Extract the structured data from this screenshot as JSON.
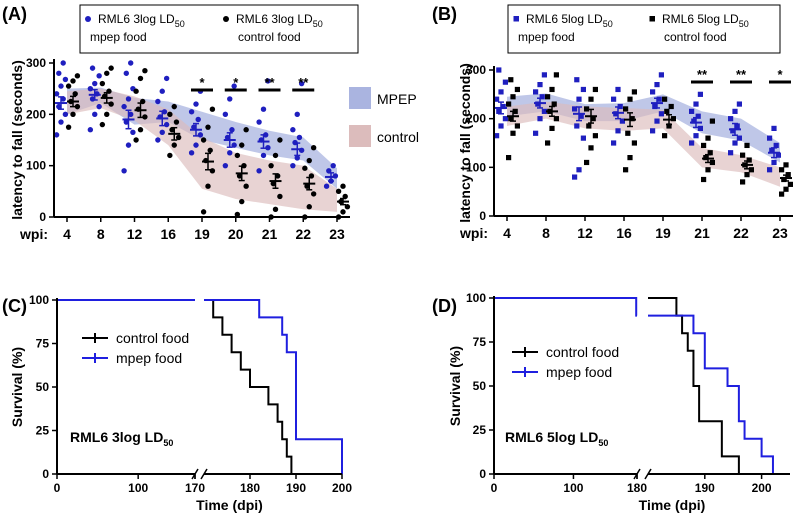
{
  "chart_data": [
    {
      "panel": "(A)",
      "type": "scatter",
      "ylabel": "latency to fall (seconds)",
      "x_prefix": "wpi:",
      "categories": [
        "4",
        "8",
        "12",
        "16",
        "19",
        "20",
        "21",
        "22",
        "23"
      ],
      "ylim": [
        0,
        300
      ],
      "yticks": [
        0,
        100,
        200,
        300
      ],
      "legend_box": [
        {
          "name": "RML6 3log LD",
          "sub": "50",
          "line2": "mpep food",
          "color": "#1f1fbf"
        },
        {
          "name": "RML6 3log LD",
          "sub": "50",
          "line2": "control food",
          "color": "#000000"
        }
      ],
      "band_legend": [
        {
          "name": "MPEP",
          "color": "#aab4e0"
        },
        {
          "name": "control",
          "color": "#dcbcbc"
        }
      ],
      "significance": [
        {
          "category": "19",
          "label": "*"
        },
        {
          "category": "20",
          "label": "*"
        },
        {
          "category": "21",
          "label": "**"
        },
        {
          "category": "22",
          "label": "**"
        }
      ],
      "series": [
        {
          "name": "mpep food",
          "color": "#1f1fbf",
          "marker": "circle",
          "means": [
            222,
            238,
            190,
            192,
            170,
            150,
            147,
            132,
            78
          ],
          "sem": [
            12,
            10,
            18,
            14,
            12,
            14,
            13,
            12,
            8
          ],
          "points": [
            [
              160,
              185,
              200,
              215,
              230,
              240,
              255,
              268,
              280,
              300
            ],
            [
              170,
              200,
              215,
              230,
              240,
              250,
              260,
              275,
              290
            ],
            [
              90,
              140,
              165,
              185,
              200,
              215,
              230,
              250,
              280,
              300
            ],
            [
              150,
              165,
              180,
              195,
              205,
              225,
              245,
              270
            ],
            [
              125,
              140,
              160,
              175,
              190,
              205,
              220,
              245
            ],
            [
              100,
              125,
              140,
              155,
              170,
              200,
              230,
              255
            ],
            [
              90,
              120,
              135,
              150,
              160,
              185,
              210,
              265
            ],
            [
              100,
              115,
              130,
              145,
              155,
              170,
              200,
              260
            ],
            [
              60,
              70,
              80,
              90,
              100
            ]
          ]
        },
        {
          "name": "control food",
          "color": "#000000",
          "marker": "circle",
          "means": [
            225,
            232,
            208,
            162,
            108,
            85,
            70,
            65,
            30
          ],
          "sem": [
            10,
            10,
            14,
            12,
            16,
            14,
            14,
            12,
            6
          ],
          "points": [
            [
              175,
              200,
              215,
              225,
              240,
              255,
              265,
              275
            ],
            [
              180,
              200,
              220,
              235,
              245,
              260,
              280,
              290
            ],
            [
              150,
              170,
              195,
              210,
              225,
              245,
              270,
              285
            ],
            [
              120,
              140,
              155,
              170,
              185,
              200,
              215
            ],
            [
              10,
              60,
              90,
              110,
              130,
              150,
              175,
              210
            ],
            [
              5,
              30,
              60,
              80,
              100,
              120,
              140,
              170
            ],
            [
              0,
              15,
              40,
              65,
              80,
              100,
              120,
              150
            ],
            [
              0,
              20,
              45,
              60,
              80,
              95,
              110,
              135
            ],
            [
              0,
              10,
              20,
              30,
              40,
              50,
              60
            ]
          ]
        }
      ],
      "bands": [
        {
          "series": "mpep food",
          "lower": [
            200,
            222,
            180,
            185,
            150,
            135,
            120,
            110,
            55
          ],
          "upper": [
            250,
            252,
            232,
            225,
            205,
            185,
            168,
            155,
            95
          ],
          "color": "#aab4e0"
        },
        {
          "series": "control food",
          "lower": [
            200,
            212,
            188,
            140,
            55,
            35,
            25,
            15,
            10
          ],
          "upper": [
            245,
            250,
            235,
            210,
            155,
            125,
            110,
            100,
            55
          ],
          "color": "#dcbcbc"
        }
      ]
    },
    {
      "panel": "(B)",
      "type": "scatter",
      "ylabel": "latency to fall (seconds)",
      "x_prefix": "wpi:",
      "categories": [
        "4",
        "8",
        "12",
        "16",
        "19",
        "21",
        "22",
        "23"
      ],
      "ylim": [
        0,
        300
      ],
      "yticks": [
        0,
        100,
        200,
        300
      ],
      "legend_box": [
        {
          "name": "RML6 5log LD",
          "sub": "50",
          "line2": "mpep food",
          "color": "#1f1fbf"
        },
        {
          "name": "RML6 5log LD",
          "sub": "50",
          "line2": "control food",
          "color": "#000000"
        }
      ],
      "significance": [
        {
          "category": "21",
          "label": "**"
        },
        {
          "category": "22",
          "label": "**"
        },
        {
          "category": "23",
          "label": "*"
        }
      ],
      "series": [
        {
          "name": "mpep food",
          "color": "#1f1fbf",
          "marker": "square",
          "means": [
            222,
            232,
            210,
            212,
            232,
            192,
            178,
            130
          ],
          "sem": [
            12,
            10,
            14,
            12,
            10,
            10,
            12,
            10
          ],
          "points": [
            [
              165,
              185,
              200,
              215,
              225,
              240,
              255,
              275,
              300
            ],
            [
              170,
              200,
              215,
              230,
              245,
              255,
              270,
              290
            ],
            [
              80,
              95,
              160,
              185,
              205,
              220,
              240,
              260,
              280
            ],
            [
              150,
              175,
              195,
              210,
              225,
              240,
              260
            ],
            [
              175,
              195,
              210,
              225,
              240,
              255,
              270,
              290
            ],
            [
              150,
              165,
              180,
              195,
              205,
              215,
              230,
              250
            ],
            [
              130,
              150,
              160,
              175,
              185,
              200,
              215,
              230
            ],
            [
              95,
              110,
              125,
              135,
              145,
              160,
              180
            ]
          ]
        },
        {
          "name": "control food",
          "color": "#000000",
          "marker": "square",
          "means": [
            205,
            215,
            205,
            198,
            198,
            118,
            105,
            78
          ],
          "sem": [
            10,
            10,
            14,
            14,
            10,
            8,
            8,
            6
          ],
          "points": [
            [
              120,
              170,
              185,
              200,
              215,
              230,
              245,
              260,
              280
            ],
            [
              150,
              180,
              200,
              215,
              230,
              245,
              260,
              290
            ],
            [
              110,
              140,
              165,
              185,
              200,
              220,
              240,
              260
            ],
            [
              95,
              120,
              150,
              170,
              200,
              220,
              240,
              255
            ],
            [
              165,
              185,
              200,
              215,
              225,
              240
            ],
            [
              75,
              95,
              110,
              120,
              130,
              145,
              160,
              195
            ],
            [
              70,
              85,
              95,
              105,
              115,
              125,
              145
            ],
            [
              45,
              55,
              65,
              75,
              85,
              95,
              105
            ]
          ]
        }
      ],
      "bands": [
        {
          "series": "mpep food",
          "lower": [
            205,
            215,
            195,
            195,
            215,
            170,
            155,
            110
          ],
          "upper": [
            245,
            252,
            230,
            232,
            250,
            215,
            200,
            150
          ],
          "color": "#aab4e0"
        },
        {
          "series": "control food",
          "lower": [
            185,
            200,
            180,
            175,
            180,
            100,
            90,
            60
          ],
          "upper": [
            225,
            235,
            225,
            222,
            218,
            140,
            125,
            100
          ],
          "color": "#dcbcbc"
        }
      ]
    },
    {
      "panel": "(C)",
      "type": "line",
      "step": true,
      "ylabel": "Survival (%)",
      "xlabel": "Time (dpi)",
      "annotation": {
        "text": "RML6 3log LD",
        "sub": "50"
      },
      "ylim": [
        0,
        100
      ],
      "yticks": [
        0,
        25,
        50,
        75,
        100
      ],
      "broken_axis": {
        "left": {
          "range": [
            0,
            170
          ],
          "ticks": [
            0,
            100,
            170
          ]
        },
        "right": {
          "range": [
            170,
            200
          ],
          "ticks": [
            170,
            180,
            190,
            200
          ]
        }
      },
      "series": [
        {
          "name": "control food",
          "color": "#000000",
          "x": [
            0,
            172,
            174,
            176,
            178,
            180,
            182,
            184,
            186,
            187,
            188,
            189
          ],
          "y": [
            100,
            90,
            80,
            70,
            60,
            50,
            50,
            40,
            30,
            20,
            10,
            0
          ]
        },
        {
          "name": "mpep food",
          "color": "#1f1fdf",
          "x": [
            0,
            182,
            187,
            188,
            190,
            200
          ],
          "y": [
            100,
            90,
            80,
            70,
            20,
            0
          ]
        }
      ]
    },
    {
      "panel": "(D)",
      "type": "line",
      "step": true,
      "ylabel": "Survival (%)",
      "xlabel": "Time (dpi)",
      "annotation": {
        "text": "RML6 5log LD",
        "sub": "50"
      },
      "ylim": [
        0,
        100
      ],
      "yticks": [
        0,
        25,
        50,
        75,
        100
      ],
      "broken_axis": {
        "left": {
          "range": [
            0,
            180
          ],
          "ticks": [
            0,
            100,
            180
          ]
        },
        "right": {
          "range": [
            180,
            205
          ],
          "ticks": [
            180,
            190,
            200
          ]
        }
      },
      "series": [
        {
          "name": "control food",
          "color": "#000000",
          "x": [
            0,
            185,
            186,
            187,
            188,
            189,
            193,
            196
          ],
          "y": [
            100,
            90,
            80,
            70,
            50,
            30,
            10,
            0
          ]
        },
        {
          "name": "mpep food",
          "color": "#1f1fdf",
          "x": [
            0,
            179,
            188,
            190,
            194,
            196,
            197,
            200,
            202
          ],
          "y": [
            100,
            90,
            80,
            60,
            50,
            30,
            20,
            10,
            0
          ]
        }
      ]
    }
  ]
}
